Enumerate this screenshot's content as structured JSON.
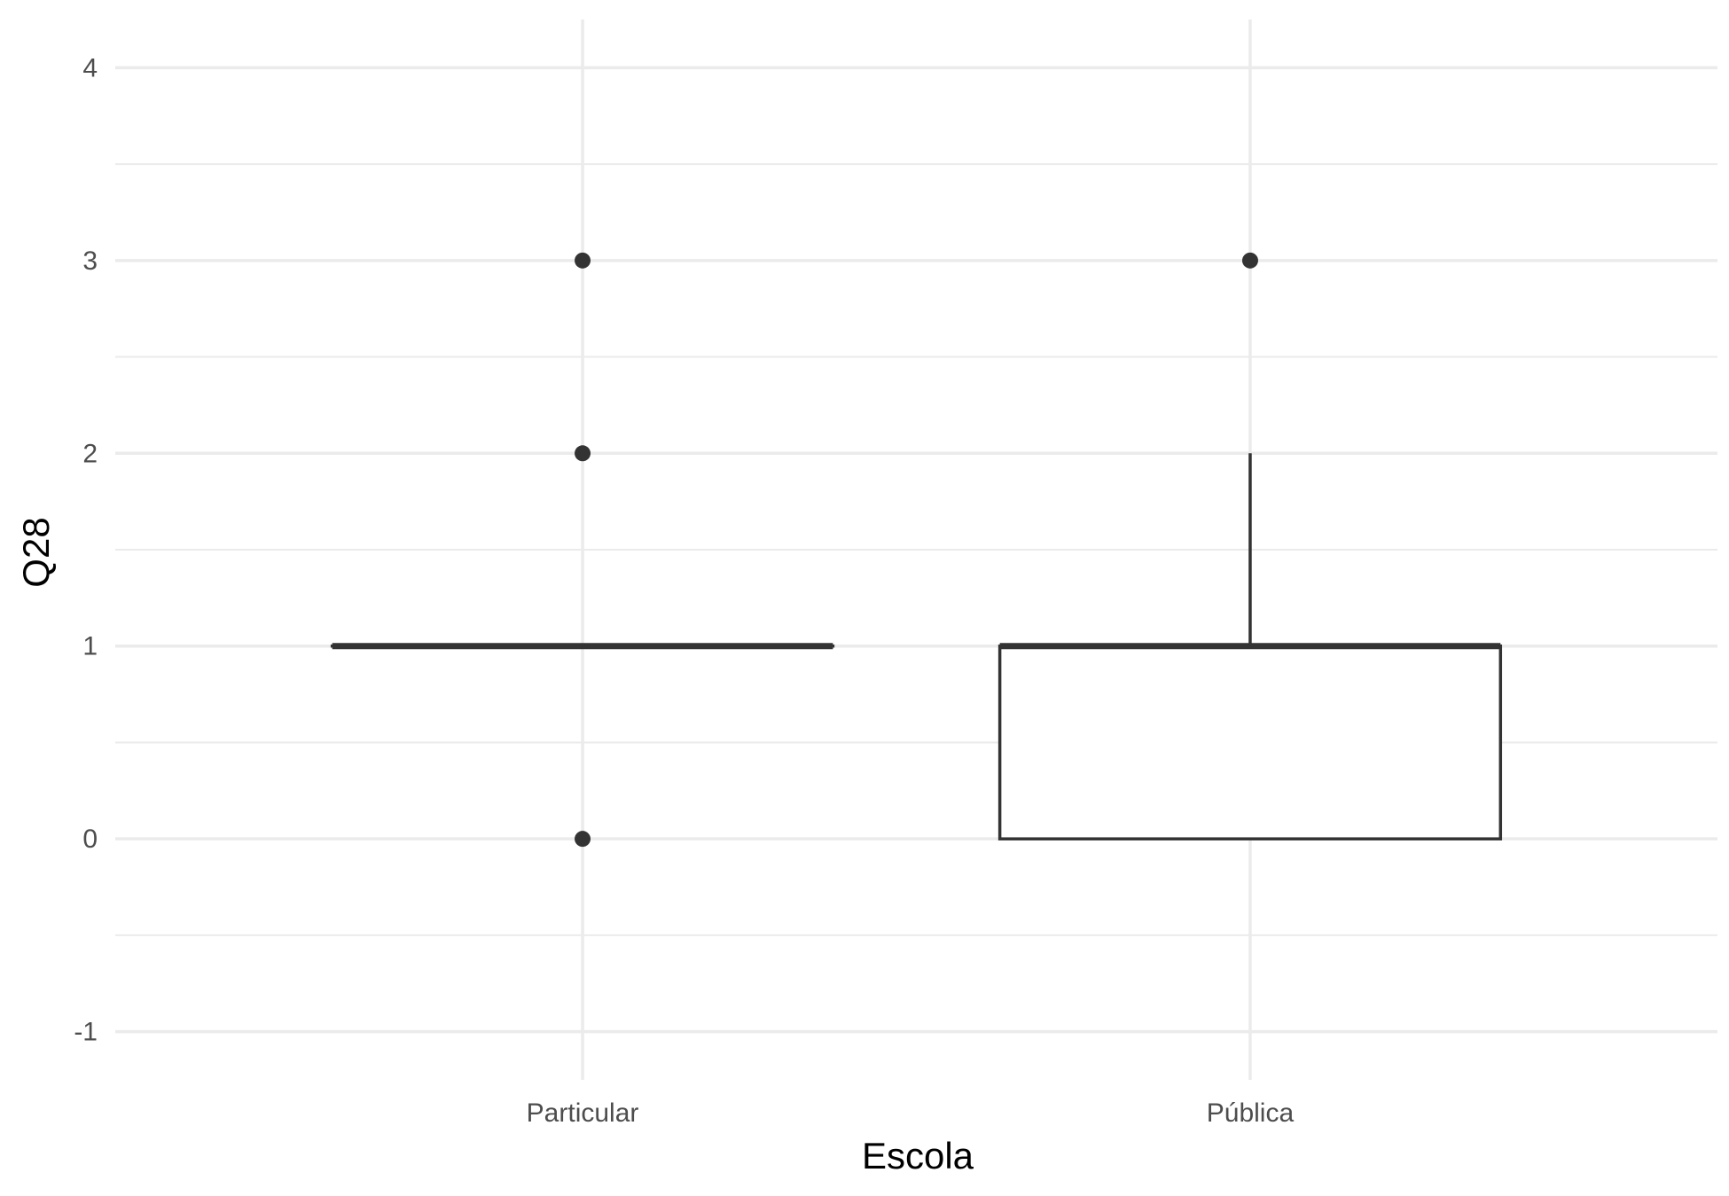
{
  "chart_data": {
    "type": "boxplot",
    "title": "",
    "xlabel": "Escola",
    "ylabel": "Q28",
    "categories": [
      "Particular",
      "Pública"
    ],
    "ylim": [
      -1.25,
      4.25
    ],
    "yticks": [
      -1,
      0,
      1,
      2,
      3,
      4
    ],
    "grid": true,
    "legend": "none",
    "boxes": [
      {
        "category": "Particular",
        "lower_whisker": 1,
        "q1": 1,
        "median": 1,
        "q3": 1,
        "upper_whisker": 1,
        "outliers": [
          0,
          2,
          3
        ]
      },
      {
        "category": "Pública",
        "lower_whisker": 0,
        "q1": 0,
        "median": 1,
        "q3": 1,
        "upper_whisker": 2,
        "outliers": [
          3
        ]
      }
    ],
    "colors": {
      "box": "#333333",
      "grid": "#ebebeb",
      "fill": "#ffffff"
    }
  }
}
